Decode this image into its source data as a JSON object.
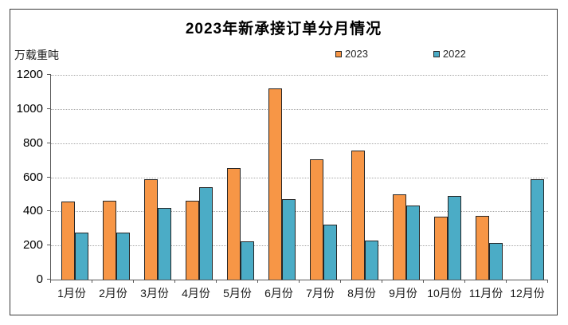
{
  "chart_data": {
    "type": "bar",
    "title": "2023年新承接订单分月情况",
    "unit_label": "万载重吨",
    "categories": [
      "1月份",
      "2月份",
      "3月份",
      "4月份",
      "5月份",
      "6月份",
      "7月份",
      "8月份",
      "9月份",
      "10月份",
      "11月份",
      "12月份"
    ],
    "series": [
      {
        "name": "2023",
        "color": "#F79646",
        "values": [
          456,
          460,
          590,
          462,
          656,
          1122,
          707,
          755,
          498,
          368,
          372,
          null
        ]
      },
      {
        "name": "2022",
        "color": "#4BACC6",
        "values": [
          276,
          276,
          420,
          543,
          225,
          472,
          321,
          230,
          433,
          489,
          214,
          588
        ]
      }
    ],
    "ylim": [
      0,
      1200
    ],
    "ytick_interval": 200,
    "yticks": [
      "0",
      "200",
      "400",
      "600",
      "800",
      "1000",
      "1200"
    ],
    "grid": "horizontal-dotted",
    "legend_position": "top-center",
    "bar_border_color": "#262626",
    "axis_color": "#595959",
    "gridline_color": "#a8a8a8"
  }
}
